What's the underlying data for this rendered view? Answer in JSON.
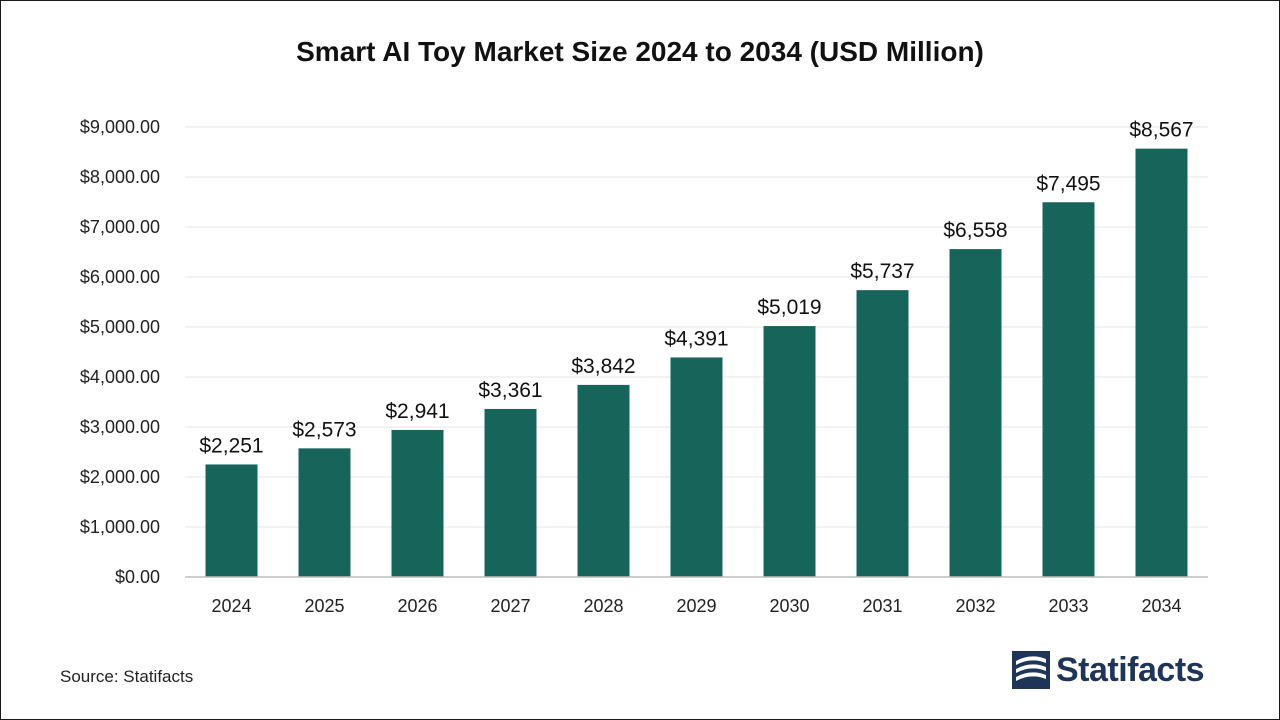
{
  "chart_data": {
    "type": "bar",
    "title": "Smart AI Toy Market Size 2024 to 2034 (USD Million)",
    "categories": [
      "2024",
      "2025",
      "2026",
      "2027",
      "2028",
      "2029",
      "2030",
      "2031",
      "2032",
      "2033",
      "2034"
    ],
    "values": [
      2251,
      2573,
      2941,
      3361,
      3842,
      4391,
      5019,
      5737,
      6558,
      7495,
      8567
    ],
    "value_labels": [
      "$2,251",
      "$2,573",
      "$2,941",
      "$3,361",
      "$3,842",
      "$4,391",
      "$5,019",
      "$5,737",
      "$6,558",
      "$7,495",
      "$8,567"
    ],
    "y_ticks": [
      0,
      1000,
      2000,
      3000,
      4000,
      5000,
      6000,
      7000,
      8000,
      9000
    ],
    "y_tick_labels": [
      "$0.00",
      "$1,000.00",
      "$2,000.00",
      "$3,000.00",
      "$4,000.00",
      "$5,000.00",
      "$6,000.00",
      "$7,000.00",
      "$8,000.00",
      "$9,000.00"
    ],
    "ylim": [
      0,
      9000
    ],
    "grid": true,
    "legend": "none",
    "bar_color": "#17645a"
  },
  "footer": {
    "source": "Source: Statifacts",
    "logo_text": "Statifacts",
    "logo_color": "#1f3557"
  }
}
